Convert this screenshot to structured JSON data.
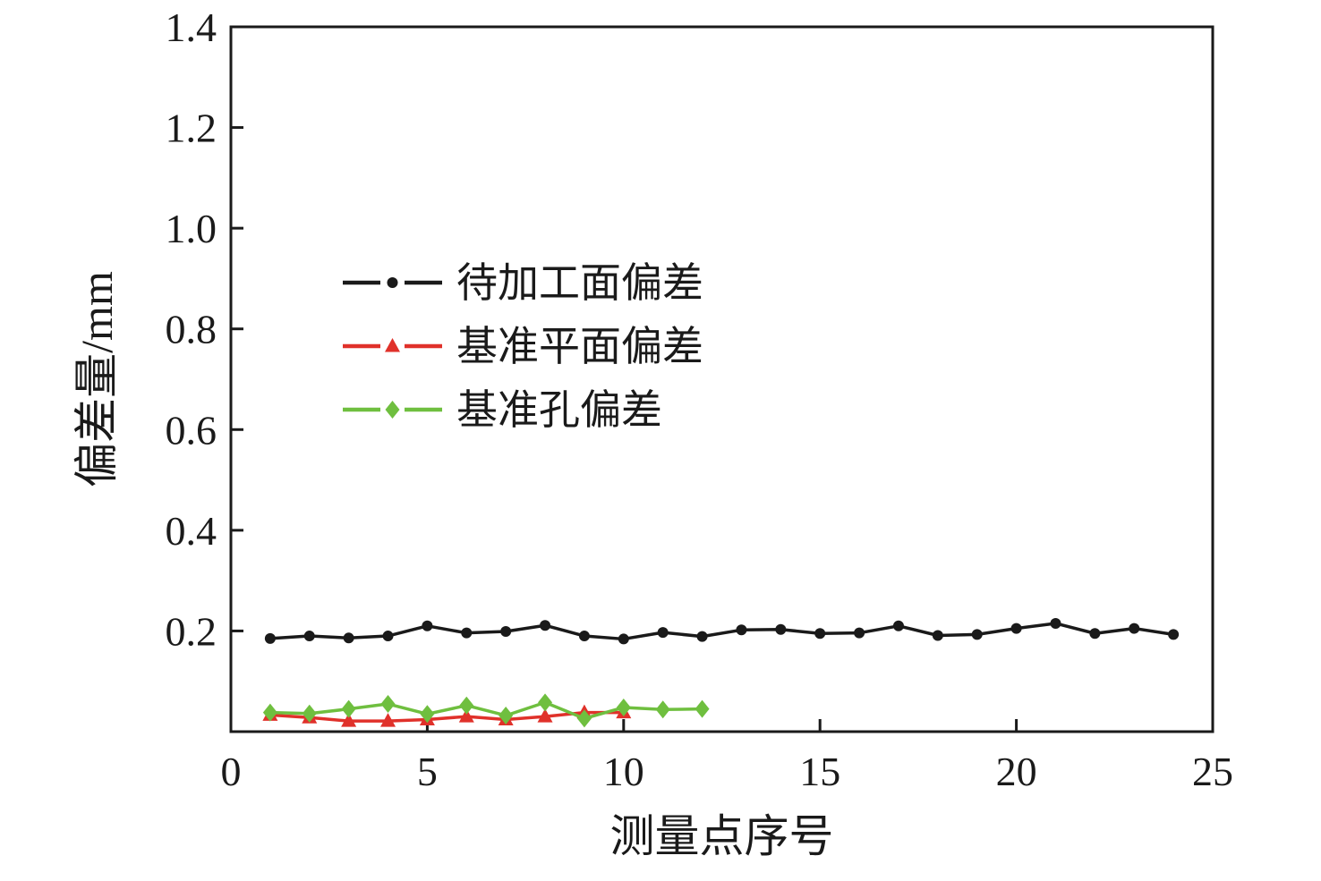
{
  "figure": {
    "background": "#ffffff",
    "frame_color": "#1a1a1a"
  },
  "chart_data": {
    "type": "line",
    "title": "",
    "xlabel": "测量点序号",
    "ylabel": "偏差量/mm",
    "xlim": [
      0,
      25
    ],
    "ylim": [
      0,
      1.4
    ],
    "xticks": [
      0,
      5,
      10,
      15,
      20,
      25
    ],
    "yticks": [
      0.2,
      0.4,
      0.6,
      0.8,
      1.0,
      1.2,
      1.4
    ],
    "grid": false,
    "legend_position": "upper-left-inside",
    "series": [
      {
        "name": "待加工面偏差",
        "color": "#1a1a1a",
        "marker": "circle",
        "x": [
          1,
          2,
          3,
          4,
          5,
          6,
          7,
          8,
          9,
          10,
          11,
          12,
          13,
          14,
          15,
          16,
          17,
          18,
          19,
          20,
          21,
          22,
          23,
          24
        ],
        "y": [
          0.185,
          0.19,
          0.186,
          0.19,
          0.21,
          0.196,
          0.199,
          0.211,
          0.19,
          0.184,
          0.197,
          0.189,
          0.202,
          0.203,
          0.195,
          0.196,
          0.21,
          0.191,
          0.193,
          0.205,
          0.215,
          0.195,
          0.205,
          0.193
        ]
      },
      {
        "name": "基准平面偏差",
        "color": "#e0312a",
        "marker": "triangle",
        "x": [
          1,
          2,
          3,
          4,
          5,
          6,
          7,
          8,
          9,
          10
        ],
        "y": [
          0.033,
          0.028,
          0.021,
          0.021,
          0.024,
          0.03,
          0.024,
          0.03,
          0.038,
          0.038
        ]
      },
      {
        "name": "基准孔偏差",
        "color": "#6fbf3f",
        "marker": "diamond",
        "x": [
          1,
          2,
          3,
          4,
          5,
          6,
          7,
          8,
          9,
          10,
          11,
          12
        ],
        "y": [
          0.038,
          0.036,
          0.045,
          0.055,
          0.035,
          0.052,
          0.032,
          0.058,
          0.026,
          0.048,
          0.044,
          0.045
        ]
      }
    ]
  }
}
